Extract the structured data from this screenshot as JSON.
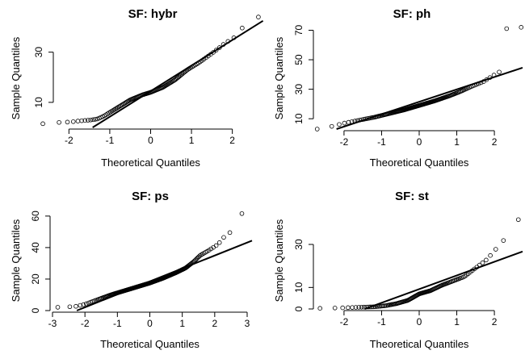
{
  "chart_data": [
    {
      "type": "scatter",
      "title": "SF: hybr",
      "xlabel": "Theoretical Quantiles",
      "ylabel": "Sample Quantiles",
      "xlim": [
        -2.6,
        2.6
      ],
      "ylim": [
        0,
        45
      ],
      "xticks": [
        -2,
        -1,
        0,
        1,
        2
      ],
      "yticks": [
        10,
        30
      ],
      "ref_line": [
        [
          -1.42,
          0
        ],
        [
          2.8,
          43
        ]
      ],
      "knots": [
        [
          -2.6,
          1.5
        ],
        [
          -2.25,
          2.0
        ],
        [
          -1.95,
          2.2
        ],
        [
          -1.75,
          2.6
        ],
        [
          -1.6,
          2.8
        ],
        [
          -1.45,
          3.0
        ],
        [
          -1.3,
          3.4
        ],
        [
          -1.15,
          4.5
        ],
        [
          -1.0,
          6.0
        ],
        [
          -0.8,
          8.0
        ],
        [
          -0.5,
          11.0
        ],
        [
          -0.2,
          13.0
        ],
        [
          0.0,
          14.0
        ],
        [
          0.3,
          16.0
        ],
        [
          0.6,
          19.0
        ],
        [
          0.9,
          23.0
        ],
        [
          1.2,
          26.0
        ],
        [
          1.5,
          29.5
        ],
        [
          1.7,
          32.0
        ],
        [
          1.85,
          34.0
        ],
        [
          2.0,
          35.0
        ],
        [
          2.2,
          39.0
        ],
        [
          2.4,
          42.0
        ],
        [
          2.6,
          44.0
        ]
      ],
      "n": 120
    },
    {
      "type": "scatter",
      "title": "SF: ph",
      "xlabel": "Theoretical Quantiles",
      "ylabel": "Sample Quantiles",
      "xlim": [
        -2.6,
        2.6
      ],
      "ylim": [
        3,
        73
      ],
      "xticks": [
        -2,
        -1,
        0,
        1,
        2
      ],
      "yticks": [
        10,
        30,
        50,
        70
      ],
      "ref_line": [
        [
          -2.2,
          3
        ],
        [
          2.8,
          45
        ]
      ],
      "knots": [
        [
          -2.6,
          3.0
        ],
        [
          -2.3,
          5.0
        ],
        [
          -2.0,
          7.0
        ],
        [
          -1.6,
          9.0
        ],
        [
          -1.2,
          11.0
        ],
        [
          -0.8,
          13.5
        ],
        [
          -0.4,
          16.0
        ],
        [
          0.0,
          19.0
        ],
        [
          0.4,
          22.0
        ],
        [
          0.8,
          25.5
        ],
        [
          1.1,
          28.5
        ],
        [
          1.4,
          32.0
        ],
        [
          1.7,
          35.0
        ],
        [
          1.95,
          39.0
        ],
        [
          2.15,
          42.0
        ],
        [
          2.3,
          71.0
        ],
        [
          2.6,
          72.0
        ]
      ],
      "n": 150
    },
    {
      "type": "scatter",
      "title": "SF: ps",
      "xlabel": "Theoretical Quantiles",
      "ylabel": "Sample Quantiles",
      "xlim": [
        -3,
        3
      ],
      "ylim": [
        0,
        63
      ],
      "xticks": [
        -3,
        -2,
        -1,
        0,
        1,
        2,
        3
      ],
      "yticks": [
        0,
        20,
        40,
        60
      ],
      "ref_line": [
        [
          -2.25,
          0
        ],
        [
          3.1,
          44
        ]
      ],
      "knots": [
        [
          -2.95,
          2.0
        ],
        [
          -2.6,
          2.3
        ],
        [
          -2.3,
          2.6
        ],
        [
          -2.0,
          4.0
        ],
        [
          -1.6,
          7.0
        ],
        [
          -1.2,
          10.0
        ],
        [
          -0.8,
          12.5
        ],
        [
          -0.4,
          15.0
        ],
        [
          0.0,
          17.5
        ],
        [
          0.4,
          20.5
        ],
        [
          0.8,
          24.0
        ],
        [
          1.1,
          27.0
        ],
        [
          1.35,
          31.0
        ],
        [
          1.55,
          35.0
        ],
        [
          1.8,
          38.0
        ],
        [
          2.1,
          42.0
        ],
        [
          2.3,
          47.0
        ],
        [
          2.5,
          50.0
        ],
        [
          2.85,
          62.0
        ]
      ],
      "n": 220
    },
    {
      "type": "scatter",
      "title": "SF: st",
      "xlabel": "Theoretical Quantiles",
      "ylabel": "Sample Quantiles",
      "xlim": [
        -2.6,
        2.6
      ],
      "ylim": [
        0,
        45
      ],
      "xticks": [
        -2,
        -1,
        0,
        1,
        2
      ],
      "yticks": [
        0,
        10,
        30
      ],
      "ref_line": [
        [
          -1.45,
          0
        ],
        [
          2.8,
          27
        ]
      ],
      "knots": [
        [
          -2.65,
          0.3
        ],
        [
          -2.1,
          0.5
        ],
        [
          -1.6,
          0.8
        ],
        [
          -1.2,
          1.0
        ],
        [
          -0.9,
          1.5
        ],
        [
          -0.6,
          2.5
        ],
        [
          -0.3,
          4.0
        ],
        [
          0.0,
          7.0
        ],
        [
          0.3,
          8.5
        ],
        [
          0.6,
          11.0
        ],
        [
          0.9,
          13.0
        ],
        [
          1.2,
          15.0
        ],
        [
          1.5,
          19.0
        ],
        [
          1.8,
          23.0
        ],
        [
          2.05,
          28.0
        ],
        [
          2.3,
          33.0
        ],
        [
          2.45,
          37.0
        ],
        [
          2.7,
          43.0
        ]
      ],
      "n": 120
    }
  ]
}
